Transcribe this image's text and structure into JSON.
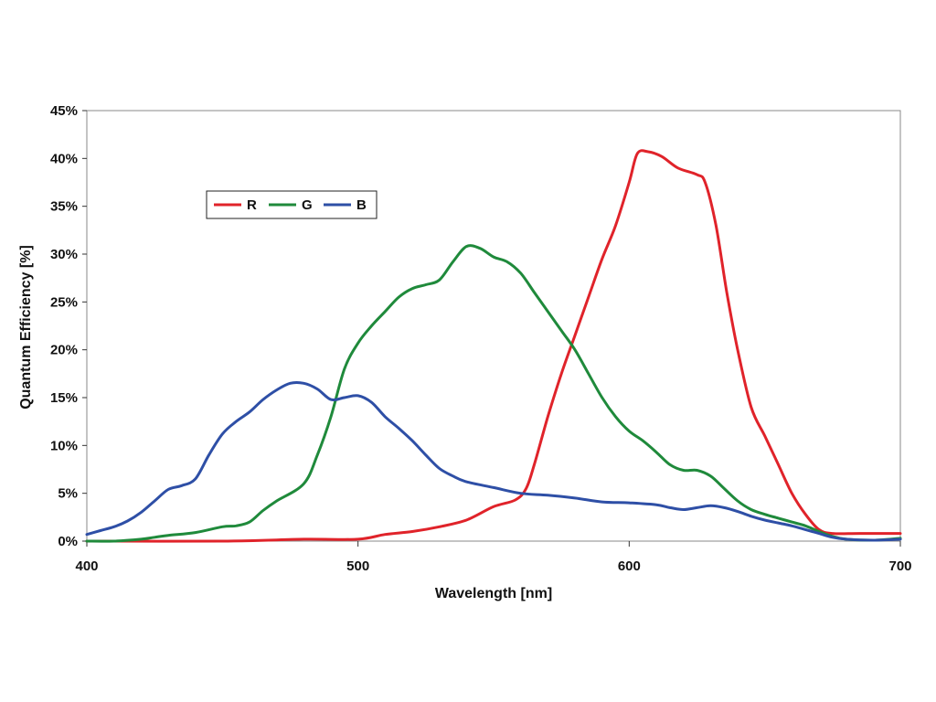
{
  "chart_data": {
    "type": "line",
    "title": "",
    "xlabel": "Wavelength [nm]",
    "ylabel": "Quantum Efficiency [%]",
    "xlim": [
      400,
      700
    ],
    "ylim": [
      0,
      45
    ],
    "x_ticks": [
      400,
      500,
      600,
      700
    ],
    "x_tick_labels": [
      "400",
      "500",
      "600",
      "700"
    ],
    "y_ticks": [
      0,
      5,
      10,
      15,
      20,
      25,
      30,
      35,
      40,
      45
    ],
    "y_tick_labels": [
      "0%",
      "5%",
      "10%",
      "15%",
      "20%",
      "25%",
      "30%",
      "35%",
      "40%",
      "45%"
    ],
    "grid": false,
    "legend": {
      "position": "upper-left",
      "orientation": "horizontal"
    },
    "series": [
      {
        "name": "R",
        "color": "#e0232a",
        "points": [
          [
            400,
            0
          ],
          [
            450,
            0
          ],
          [
            480,
            0.2
          ],
          [
            500,
            0.2
          ],
          [
            510,
            0.7
          ],
          [
            520,
            1.0
          ],
          [
            530,
            1.5
          ],
          [
            540,
            2.2
          ],
          [
            550,
            3.6
          ],
          [
            558,
            4.3
          ],
          [
            562,
            5.5
          ],
          [
            565,
            8
          ],
          [
            570,
            13
          ],
          [
            575,
            17.5
          ],
          [
            580,
            21.5
          ],
          [
            585,
            25.5
          ],
          [
            590,
            29.5
          ],
          [
            595,
            33
          ],
          [
            600,
            37.5
          ],
          [
            603,
            40.5
          ],
          [
            607,
            40.7
          ],
          [
            612,
            40.2
          ],
          [
            618,
            39
          ],
          [
            625,
            38.3
          ],
          [
            628,
            37.5
          ],
          [
            632,
            33
          ],
          [
            636,
            26
          ],
          [
            640,
            20
          ],
          [
            645,
            14
          ],
          [
            650,
            11
          ],
          [
            655,
            8
          ],
          [
            660,
            5
          ],
          [
            665,
            2.8
          ],
          [
            670,
            1.2
          ],
          [
            675,
            0.8
          ],
          [
            685,
            0.8
          ],
          [
            700,
            0.8
          ]
        ]
      },
      {
        "name": "G",
        "color": "#1f8a3b",
        "points": [
          [
            400,
            0
          ],
          [
            410,
            0
          ],
          [
            420,
            0.2
          ],
          [
            425,
            0.4
          ],
          [
            430,
            0.6
          ],
          [
            440,
            0.9
          ],
          [
            450,
            1.5
          ],
          [
            455,
            1.6
          ],
          [
            460,
            2
          ],
          [
            465,
            3.2
          ],
          [
            470,
            4.2
          ],
          [
            480,
            6
          ],
          [
            485,
            9
          ],
          [
            490,
            13
          ],
          [
            495,
            18
          ],
          [
            500,
            20.7
          ],
          [
            505,
            22.5
          ],
          [
            510,
            24
          ],
          [
            515,
            25.5
          ],
          [
            520,
            26.4
          ],
          [
            525,
            26.8
          ],
          [
            530,
            27.3
          ],
          [
            535,
            29.2
          ],
          [
            540,
            30.8
          ],
          [
            545,
            30.6
          ],
          [
            550,
            29.7
          ],
          [
            555,
            29.2
          ],
          [
            560,
            28
          ],
          [
            565,
            26
          ],
          [
            570,
            24
          ],
          [
            575,
            22
          ],
          [
            580,
            20
          ],
          [
            585,
            17.5
          ],
          [
            590,
            15
          ],
          [
            595,
            13
          ],
          [
            600,
            11.5
          ],
          [
            605,
            10.5
          ],
          [
            610,
            9.3
          ],
          [
            615,
            8
          ],
          [
            620,
            7.4
          ],
          [
            625,
            7.4
          ],
          [
            630,
            6.8
          ],
          [
            635,
            5.5
          ],
          [
            640,
            4.2
          ],
          [
            645,
            3.3
          ],
          [
            650,
            2.8
          ],
          [
            655,
            2.4
          ],
          [
            660,
            2
          ],
          [
            665,
            1.6
          ],
          [
            670,
            1
          ],
          [
            675,
            0.5
          ],
          [
            680,
            0.2
          ],
          [
            690,
            0.1
          ],
          [
            700,
            0.3
          ]
        ]
      },
      {
        "name": "B",
        "color": "#2e4fa6",
        "points": [
          [
            400,
            0.7
          ],
          [
            405,
            1.1
          ],
          [
            410,
            1.5
          ],
          [
            415,
            2.1
          ],
          [
            420,
            3
          ],
          [
            425,
            4.2
          ],
          [
            430,
            5.4
          ],
          [
            435,
            5.8
          ],
          [
            440,
            6.5
          ],
          [
            445,
            9
          ],
          [
            450,
            11.2
          ],
          [
            455,
            12.5
          ],
          [
            460,
            13.5
          ],
          [
            465,
            14.8
          ],
          [
            470,
            15.8
          ],
          [
            475,
            16.5
          ],
          [
            480,
            16.5
          ],
          [
            485,
            15.9
          ],
          [
            490,
            14.8
          ],
          [
            495,
            15
          ],
          [
            500,
            15.2
          ],
          [
            505,
            14.5
          ],
          [
            510,
            13
          ],
          [
            515,
            11.8
          ],
          [
            520,
            10.5
          ],
          [
            525,
            9
          ],
          [
            530,
            7.6
          ],
          [
            535,
            6.8
          ],
          [
            540,
            6.2
          ],
          [
            550,
            5.6
          ],
          [
            560,
            5
          ],
          [
            570,
            4.8
          ],
          [
            580,
            4.5
          ],
          [
            590,
            4.1
          ],
          [
            600,
            4
          ],
          [
            610,
            3.8
          ],
          [
            615,
            3.5
          ],
          [
            620,
            3.3
          ],
          [
            625,
            3.5
          ],
          [
            630,
            3.7
          ],
          [
            635,
            3.5
          ],
          [
            640,
            3.1
          ],
          [
            645,
            2.6
          ],
          [
            650,
            2.2
          ],
          [
            655,
            1.9
          ],
          [
            660,
            1.6
          ],
          [
            665,
            1.2
          ],
          [
            670,
            0.8
          ],
          [
            675,
            0.4
          ],
          [
            680,
            0.2
          ],
          [
            690,
            0.1
          ],
          [
            700,
            0.2
          ]
        ]
      }
    ]
  }
}
